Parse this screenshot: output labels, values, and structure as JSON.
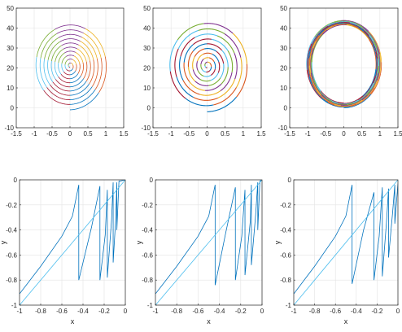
{
  "chart_data": [
    {
      "type": "line",
      "panel": "top-left",
      "xlim": [
        -1.5,
        1.5
      ],
      "ylim": [
        -10,
        50
      ],
      "xticks": [
        "-1.5",
        "-1",
        "-0.5",
        "0",
        "0.5",
        "1",
        "1.5"
      ],
      "yticks": [
        "-10",
        "0",
        "10",
        "20",
        "30",
        "40",
        "50"
      ],
      "xlabel": "",
      "ylabel": "",
      "grid": true,
      "palette": [
        "#0072BD",
        "#D95319",
        "#EDB120",
        "#7E2F8E",
        "#77AC30",
        "#4DBEEE",
        "#A2142F"
      ],
      "spiral": {
        "center_x": 0,
        "center_y": 21,
        "outer_radius_x": 1.05,
        "outer_radius_y": 22,
        "inner_radius_x": 0.02,
        "inner_radius_y": 0.5,
        "turns": 10,
        "style": "widely-spaced spiral ending in a small vortex"
      }
    },
    {
      "type": "line",
      "panel": "top-middle",
      "xlim": [
        -1.5,
        1.5
      ],
      "ylim": [
        -10,
        50
      ],
      "xticks": [
        "-1.5",
        "-1",
        "-0.5",
        "0",
        "0.5",
        "1",
        "1.5"
      ],
      "yticks": [
        "-10",
        "0",
        "10",
        "20",
        "30",
        "40",
        "50"
      ],
      "xlabel": "",
      "ylabel": "",
      "grid": true,
      "palette": [
        "#0072BD",
        "#D95319",
        "#EDB120",
        "#7E2F8E",
        "#77AC30",
        "#4DBEEE",
        "#A2142F"
      ],
      "spiral": {
        "center_x": 0,
        "center_y": 21,
        "outer_radius_x": 1.15,
        "outer_radius_y": 23,
        "inner_radius_x": 0.03,
        "inner_radius_y": 0.8,
        "turns": 9,
        "style": "thick dense outer band, open inner spiral"
      }
    },
    {
      "type": "line",
      "panel": "top-right",
      "xlim": [
        -1.5,
        1.5
      ],
      "ylim": [
        -10,
        50
      ],
      "xticks": [
        "-1.5",
        "-1",
        "-0.5",
        "0",
        "0.5",
        "1",
        "1.5"
      ],
      "yticks": [
        "-10",
        "0",
        "10",
        "20",
        "30",
        "40",
        "50"
      ],
      "xlabel": "",
      "ylabel": "",
      "grid": true,
      "palette": [
        "#0072BD",
        "#D95319",
        "#EDB120",
        "#7E2F8E",
        "#77AC30",
        "#4DBEEE",
        "#A2142F"
      ],
      "spiral": {
        "center_x": 0,
        "center_y": 22,
        "outer_radius_x": 1.05,
        "outer_radius_y": 22,
        "inner_radius_x": 0.88,
        "inner_radius_y": 19.5,
        "turns": 9,
        "style": "ring (limit cycle)"
      }
    },
    {
      "type": "line",
      "panel": "bottom-left",
      "xlim": [
        -1,
        0
      ],
      "ylim": [
        -1,
        0
      ],
      "xticks": [
        "-1",
        "-0.8",
        "-0.6",
        "-0.4",
        "-0.2",
        "0"
      ],
      "yticks": [
        "-1",
        "-0.8",
        "-0.6",
        "-0.4",
        "-0.2",
        "0"
      ],
      "xlabel": "x",
      "ylabel": "y",
      "grid": true,
      "series": [
        {
          "color": "#0072BD",
          "points": [
            [
              -1.0,
              -0.91
            ],
            [
              -0.8,
              -0.69
            ],
            [
              -0.6,
              -0.45
            ],
            [
              -0.5,
              -0.29
            ],
            [
              -0.44,
              -0.04
            ],
            [
              -0.44,
              -0.8
            ],
            [
              -0.32,
              -0.38
            ],
            [
              -0.24,
              -0.05
            ],
            [
              -0.24,
              -0.8
            ],
            [
              -0.19,
              -0.44
            ],
            [
              -0.17,
              -0.08
            ],
            [
              -0.17,
              -0.78
            ],
            [
              -0.13,
              -0.32
            ],
            [
              -0.115,
              -0.02
            ],
            [
              -0.115,
              -0.66
            ],
            [
              -0.09,
              -0.3
            ],
            [
              -0.08,
              -0.02
            ],
            [
              -0.08,
              -0.4
            ],
            [
              -0.06,
              -0.01
            ],
            [
              -0.05,
              -0.01
            ],
            [
              0.0,
              0.0
            ]
          ]
        },
        {
          "color": "#4DBEEE",
          "points": [
            [
              -1.0,
              -1.0
            ],
            [
              0.0,
              0.0
            ]
          ]
        }
      ]
    },
    {
      "type": "line",
      "panel": "bottom-middle",
      "xlim": [
        -1,
        0
      ],
      "ylim": [
        -1,
        0
      ],
      "xticks": [
        "-1",
        "-0.8",
        "-0.6",
        "-0.4",
        "-0.2",
        "0"
      ],
      "yticks": [
        "-1",
        "-0.8",
        "-0.6",
        "-0.4",
        "-0.2",
        "0"
      ],
      "xlabel": "x",
      "ylabel": "y",
      "grid": true,
      "series": [
        {
          "color": "#0072BD",
          "points": [
            [
              -1.0,
              -0.91
            ],
            [
              -0.8,
              -0.69
            ],
            [
              -0.6,
              -0.45
            ],
            [
              -0.5,
              -0.29
            ],
            [
              -0.44,
              -0.04
            ],
            [
              -0.44,
              -0.84
            ],
            [
              -0.34,
              -0.42
            ],
            [
              -0.25,
              -0.06
            ],
            [
              -0.25,
              -0.8
            ],
            [
              -0.19,
              -0.45
            ],
            [
              -0.16,
              -0.08
            ],
            [
              -0.16,
              -0.76
            ],
            [
              -0.11,
              -0.33
            ],
            [
              -0.1,
              -0.04
            ],
            [
              -0.1,
              -0.68
            ],
            [
              -0.06,
              -0.28
            ],
            [
              -0.04,
              -0.02
            ],
            [
              -0.04,
              -0.4
            ],
            [
              -0.02,
              -0.01
            ],
            [
              0.0,
              0.0
            ]
          ]
        },
        {
          "color": "#4DBEEE",
          "points": [
            [
              -1.0,
              -1.0
            ],
            [
              0.0,
              0.0
            ]
          ]
        }
      ]
    },
    {
      "type": "line",
      "panel": "bottom-right",
      "xlim": [
        -1,
        0
      ],
      "ylim": [
        -1,
        0
      ],
      "xticks": [
        "-1",
        "-0.8",
        "-0.6",
        "-0.4",
        "-0.2",
        "0"
      ],
      "yticks": [
        "-1",
        "-0.8",
        "-0.6",
        "-0.4",
        "-0.2",
        "0"
      ],
      "xlabel": "x",
      "ylabel": "y",
      "grid": true,
      "series": [
        {
          "color": "#0072BD",
          "points": [
            [
              -1.0,
              -0.91
            ],
            [
              -0.8,
              -0.69
            ],
            [
              -0.6,
              -0.45
            ],
            [
              -0.5,
              -0.29
            ],
            [
              -0.44,
              -0.04
            ],
            [
              -0.44,
              -0.83
            ],
            [
              -0.33,
              -0.4
            ],
            [
              -0.23,
              -0.1
            ],
            [
              -0.23,
              -0.8
            ],
            [
              -0.18,
              -0.45
            ],
            [
              -0.15,
              -0.06
            ],
            [
              -0.15,
              -0.77
            ],
            [
              -0.11,
              -0.34
            ],
            [
              -0.09,
              -0.07
            ],
            [
              -0.09,
              -0.62
            ],
            [
              -0.05,
              -0.25
            ],
            [
              -0.03,
              -0.04
            ],
            [
              -0.03,
              -0.35
            ],
            [
              0.0,
              -0.03
            ]
          ]
        },
        {
          "color": "#4DBEEE",
          "points": [
            [
              -1.0,
              -1.0
            ],
            [
              0.0,
              0.0
            ]
          ]
        }
      ]
    }
  ]
}
